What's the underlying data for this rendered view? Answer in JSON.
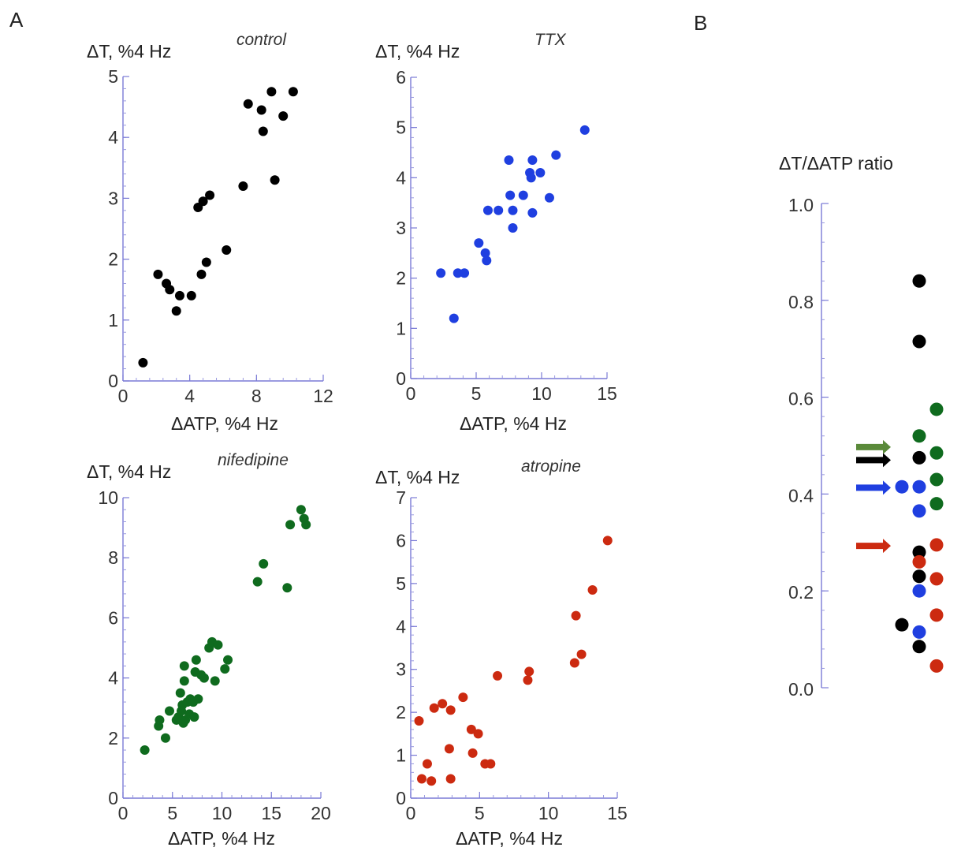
{
  "panel_letters": [
    "A",
    "B"
  ],
  "chart_data": [
    {
      "type": "scatter",
      "panel": "A",
      "title": "control",
      "xlabel": "ΔATP, %4 Hz",
      "ylabel": "ΔT, %4 Hz",
      "xlim": [
        0,
        12
      ],
      "ylim": [
        0,
        5
      ],
      "xticks": [
        0,
        4,
        8,
        12
      ],
      "yticks": [
        0,
        1,
        2,
        3,
        4,
        5
      ],
      "color": "#000000",
      "points": [
        [
          1.2,
          0.3
        ],
        [
          2.1,
          1.75
        ],
        [
          2.6,
          1.6
        ],
        [
          2.8,
          1.5
        ],
        [
          3.2,
          1.15
        ],
        [
          3.4,
          1.4
        ],
        [
          4.1,
          1.4
        ],
        [
          4.7,
          1.75
        ],
        [
          4.5,
          2.85
        ],
        [
          4.8,
          2.95
        ],
        [
          5.0,
          1.95
        ],
        [
          5.2,
          3.05
        ],
        [
          6.2,
          2.15
        ],
        [
          7.2,
          3.2
        ],
        [
          7.5,
          4.55
        ],
        [
          8.3,
          4.45
        ],
        [
          8.4,
          4.1
        ],
        [
          8.9,
          4.75
        ],
        [
          9.1,
          3.3
        ],
        [
          9.6,
          4.35
        ],
        [
          10.2,
          4.75
        ]
      ]
    },
    {
      "type": "scatter",
      "panel": "A",
      "title": "TTX",
      "xlabel": "ΔATP, %4 Hz",
      "ylabel": "ΔT, %4 Hz",
      "xlim": [
        0,
        15
      ],
      "ylim": [
        0,
        6
      ],
      "xticks": [
        0,
        5,
        10,
        15
      ],
      "yticks": [
        0,
        1,
        2,
        3,
        4,
        5,
        6
      ],
      "color": "#1f3fe0",
      "points": [
        [
          2.3,
          2.1
        ],
        [
          3.3,
          1.2
        ],
        [
          3.6,
          2.1
        ],
        [
          4.1,
          2.1
        ],
        [
          5.2,
          2.7
        ],
        [
          5.7,
          2.5
        ],
        [
          5.8,
          2.35
        ],
        [
          5.9,
          3.35
        ],
        [
          6.7,
          3.35
        ],
        [
          7.5,
          4.35
        ],
        [
          7.6,
          3.65
        ],
        [
          7.8,
          3.0
        ],
        [
          7.8,
          3.35
        ],
        [
          8.6,
          3.65
        ],
        [
          9.1,
          4.1
        ],
        [
          9.2,
          4.0
        ],
        [
          9.3,
          4.35
        ],
        [
          9.3,
          3.3
        ],
        [
          9.9,
          4.1
        ],
        [
          10.6,
          3.6
        ],
        [
          11.1,
          4.45
        ],
        [
          13.3,
          4.95
        ]
      ]
    },
    {
      "type": "scatter",
      "panel": "A",
      "title": "nifedipine",
      "xlabel": "ΔATP, %4 Hz",
      "ylabel": "ΔT, %4 Hz",
      "xlim": [
        0,
        20
      ],
      "ylim": [
        0,
        10
      ],
      "xticks": [
        0,
        5,
        10,
        15,
        20
      ],
      "yticks": [
        0,
        2,
        4,
        6,
        8,
        10
      ],
      "color": "#0f6b1e",
      "points": [
        [
          2.2,
          1.6
        ],
        [
          3.6,
          2.4
        ],
        [
          3.7,
          2.6
        ],
        [
          4.3,
          2.0
        ],
        [
          4.7,
          2.9
        ],
        [
          5.4,
          2.6
        ],
        [
          5.6,
          2.7
        ],
        [
          5.8,
          3.5
        ],
        [
          5.9,
          2.9
        ],
        [
          6.0,
          3.1
        ],
        [
          6.1,
          2.5
        ],
        [
          6.2,
          3.9
        ],
        [
          6.2,
          4.4
        ],
        [
          6.3,
          2.6
        ],
        [
          6.5,
          3.2
        ],
        [
          6.7,
          2.8
        ],
        [
          6.8,
          3.3
        ],
        [
          7.1,
          3.2
        ],
        [
          7.2,
          2.7
        ],
        [
          7.3,
          4.2
        ],
        [
          7.4,
          4.6
        ],
        [
          7.6,
          3.3
        ],
        [
          7.9,
          4.1
        ],
        [
          8.2,
          4.0
        ],
        [
          8.7,
          5.0
        ],
        [
          9.0,
          5.2
        ],
        [
          9.3,
          3.9
        ],
        [
          9.6,
          5.1
        ],
        [
          10.3,
          4.3
        ],
        [
          10.6,
          4.6
        ],
        [
          13.6,
          7.2
        ],
        [
          14.2,
          7.8
        ],
        [
          16.6,
          7.0
        ],
        [
          16.9,
          9.1
        ],
        [
          18.0,
          9.6
        ],
        [
          18.3,
          9.3
        ],
        [
          18.5,
          9.1
        ]
      ]
    },
    {
      "type": "scatter",
      "panel": "A",
      "title": "atropine",
      "xlabel": "ΔATP, %4 Hz",
      "ylabel": "ΔT, %4 Hz",
      "xlim": [
        0,
        15
      ],
      "ylim": [
        0,
        7
      ],
      "xticks": [
        0,
        5,
        10,
        15
      ],
      "yticks": [
        0,
        1,
        2,
        3,
        4,
        5,
        6,
        7
      ],
      "color": "#cc2a10",
      "points": [
        [
          0.6,
          1.8
        ],
        [
          0.8,
          0.45
        ],
        [
          1.2,
          0.8
        ],
        [
          1.5,
          0.4
        ],
        [
          1.7,
          2.1
        ],
        [
          2.3,
          2.2
        ],
        [
          2.8,
          1.15
        ],
        [
          2.9,
          0.45
        ],
        [
          2.9,
          2.05
        ],
        [
          3.8,
          2.35
        ],
        [
          4.4,
          1.6
        ],
        [
          4.5,
          1.05
        ],
        [
          4.9,
          1.5
        ],
        [
          5.4,
          0.8
        ],
        [
          5.8,
          0.8
        ],
        [
          6.3,
          2.85
        ],
        [
          8.5,
          2.75
        ],
        [
          8.6,
          2.95
        ],
        [
          11.9,
          3.15
        ],
        [
          12.0,
          4.25
        ],
        [
          12.4,
          3.35
        ],
        [
          13.2,
          4.85
        ],
        [
          14.3,
          6.0
        ]
      ]
    },
    {
      "type": "scatter",
      "panel": "B",
      "title": "ΔT/ΔATP ratio",
      "ylim": [
        0.0,
        1.0
      ],
      "yticks": [
        "0.0",
        "0.2",
        "0.4",
        "0.6",
        "0.8",
        "1.0"
      ],
      "columns": [
        -1,
        0,
        1
      ],
      "series": [
        {
          "color": "#000000",
          "points": [
            [
              0,
              0.84
            ],
            [
              0,
              0.715
            ],
            [
              0,
              0.475
            ],
            [
              0,
              0.28
            ],
            [
              0,
              0.23
            ],
            [
              -1,
              0.13
            ],
            [
              0,
              0.085
            ]
          ]
        },
        {
          "color": "#1f3fe0",
          "points": [
            [
              -1,
              0.415
            ],
            [
              0,
              0.415
            ],
            [
              0,
              0.365
            ],
            [
              0,
              0.2
            ],
            [
              0,
              0.115
            ]
          ]
        },
        {
          "color": "#0f6b1e",
          "points": [
            [
              1,
              0.575
            ],
            [
              0,
              0.52
            ],
            [
              1,
              0.485
            ],
            [
              1,
              0.43
            ],
            [
              1,
              0.38
            ]
          ]
        },
        {
          "color": "#cc2a10",
          "points": [
            [
              1,
              0.295
            ],
            [
              0,
              0.26
            ],
            [
              1,
              0.225
            ],
            [
              1,
              0.15
            ],
            [
              1,
              0.045
            ]
          ]
        }
      ],
      "mean_arrows": [
        {
          "color": "#5a8a3a",
          "value": 0.497
        },
        {
          "color": "#000000",
          "value": 0.47
        },
        {
          "color": "#1f3fe0",
          "value": 0.413
        },
        {
          "color": "#cc2a10",
          "value": 0.293
        }
      ]
    }
  ]
}
